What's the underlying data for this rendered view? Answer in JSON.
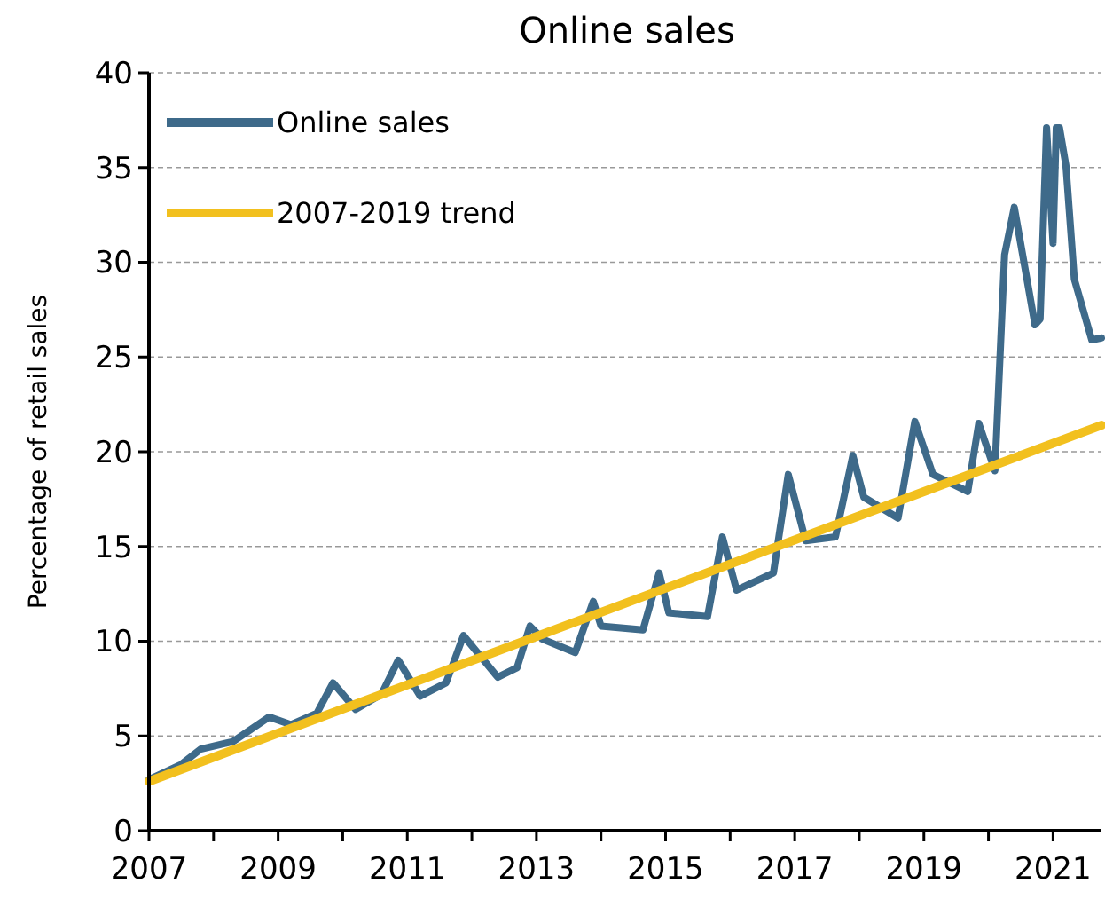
{
  "chart_data": {
    "type": "line",
    "title": "Online sales",
    "ylabel": "Percentage of retail sales",
    "xlim": [
      2007,
      2021.75
    ],
    "ylim": [
      0,
      40
    ],
    "xticks": [
      2007,
      {
        "value": 2008,
        "label": null
      },
      2009,
      {
        "value": 2010,
        "label": null
      },
      2011,
      {
        "value": 2012,
        "label": null
      },
      2013,
      {
        "value": 2014,
        "label": null
      },
      2015,
      {
        "value": 2016,
        "label": null
      },
      2017,
      {
        "value": 2018,
        "label": null
      },
      2019,
      {
        "value": 2020,
        "label": null
      },
      2021
    ],
    "yticks": [
      0,
      5,
      10,
      15,
      20,
      25,
      30,
      35,
      40
    ],
    "grid": "y",
    "legend": "top left",
    "line_style": "solid",
    "series": [
      {
        "name": "Online sales",
        "color": "#3e6a8a",
        "x": [
          2007,
          2007.5,
          2007.8,
          2008.3,
          2008.86,
          2009.2,
          2009.6,
          2009.85,
          2010.2,
          2010.6,
          2010.86,
          2011.2,
          2011.6,
          2011.87,
          2012.4,
          2012.7,
          2012.9,
          2013.1,
          2013.6,
          2013.88,
          2014.0,
          2014.65,
          2014.9,
          2015.05,
          2015.65,
          2015.88,
          2016.1,
          2016.67,
          2016.9,
          2017.17,
          2017.63,
          2017.9,
          2018.07,
          2018.6,
          2018.86,
          2019.14,
          2019.68,
          2019.85,
          2020.1,
          2020.25,
          2020.4,
          2020.72,
          2020.8,
          2020.9,
          2021.0,
          2021.05,
          2021.1,
          2021.2,
          2021.33,
          2021.6,
          2021.75
        ],
        "values": [
          2.7,
          3.5,
          4.3,
          4.7,
          6.0,
          5.6,
          6.2,
          7.8,
          6.4,
          7.2,
          9.0,
          7.1,
          7.8,
          10.3,
          8.1,
          8.6,
          10.8,
          10.1,
          9.4,
          12.1,
          10.8,
          10.6,
          13.6,
          11.5,
          11.3,
          15.5,
          12.7,
          13.6,
          18.8,
          15.3,
          15.5,
          19.8,
          17.6,
          16.5,
          21.6,
          18.8,
          17.9,
          21.5,
          19.0,
          30.4,
          32.9,
          26.7,
          27.0,
          37.1,
          31.0,
          37.1,
          37.1,
          35.1,
          29.1,
          25.9,
          26.0
        ]
      },
      {
        "name": "2007-2019 trend",
        "color": "#f2c01e",
        "x": [
          2007,
          2021.75
        ],
        "values": [
          2.6,
          21.4
        ]
      }
    ]
  }
}
